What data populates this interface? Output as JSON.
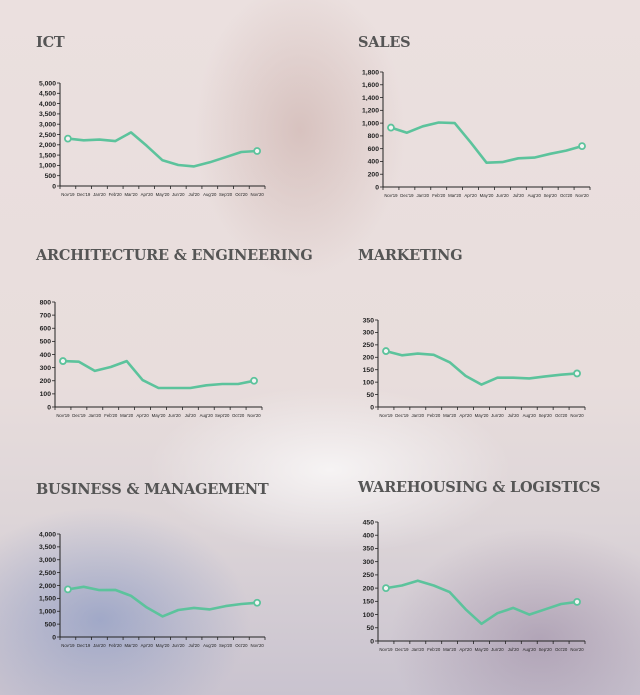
{
  "colors": {
    "line": "#5cc39c",
    "axis": "#222222",
    "title": "#555555"
  },
  "chart_data": [
    {
      "id": "ict",
      "type": "line",
      "title": "ICT",
      "ylim": [
        0,
        5000
      ],
      "ystep": 500,
      "yticks_format": "comma",
      "categories": [
        "Nov'19",
        "Dec'19",
        "Jan'20",
        "Feb'20",
        "Mar'20",
        "Apr'20",
        "May'20",
        "Jun'20",
        "Jul'20",
        "Aug'20",
        "Sep'20",
        "Oct'20",
        "Nov'20"
      ],
      "values": [
        2300,
        2220,
        2250,
        2180,
        2600,
        1950,
        1250,
        1020,
        950,
        1150,
        1400,
        1650,
        1700
      ]
    },
    {
      "id": "sales",
      "type": "line",
      "title": "SALES",
      "ylim": [
        0,
        1800
      ],
      "ystep": 200,
      "categories": [
        "Nov'19",
        "Dec'19",
        "Jan'20",
        "Feb'20",
        "Mar'20",
        "Apr'20",
        "May'20",
        "Jun'20",
        "Jul'20",
        "Aug'20",
        "Sep'20",
        "Oct'20",
        "Nov'20"
      ],
      "values": [
        930,
        850,
        950,
        1010,
        1000,
        700,
        380,
        390,
        450,
        460,
        520,
        570,
        640
      ]
    },
    {
      "id": "arch",
      "type": "line",
      "title": "ARCHITECTURE & ENGINEERING",
      "ylim": [
        0,
        800
      ],
      "ystep": 100,
      "categories": [
        "Nov'19",
        "Dec'19",
        "Jan'20",
        "Feb'20",
        "Mar'20",
        "Apr'20",
        "May'20",
        "Jun'20",
        "Jul'20",
        "Aug'20",
        "Sept'20",
        "Oct'20",
        "Nov'20"
      ],
      "values": [
        350,
        345,
        275,
        305,
        350,
        205,
        145,
        145,
        145,
        165,
        175,
        175,
        200
      ]
    },
    {
      "id": "marketing",
      "type": "line",
      "title": "MARKETING",
      "ylim": [
        0,
        350
      ],
      "ystep": 50,
      "categories": [
        "Nov'19",
        "Dec'19",
        "Jan'20",
        "Feb'20",
        "Mar'20",
        "Apr'20",
        "May'20",
        "Jun'20",
        "Jul'20",
        "Aug'20",
        "Sep'20",
        "Oct'20",
        "Nov'20"
      ],
      "values": [
        225,
        208,
        215,
        210,
        180,
        125,
        90,
        118,
        118,
        115,
        123,
        130,
        135
      ]
    },
    {
      "id": "business",
      "type": "line",
      "title": "BUSINESS & MANAGEMENT",
      "ylim": [
        0,
        4000
      ],
      "ystep": 500,
      "categories": [
        "Nov'19",
        "Dec'19",
        "Jan'20",
        "Feb'20",
        "Mar'20",
        "Apr'20",
        "May'20",
        "Jun'20",
        "Jul'20",
        "Aug'20",
        "Sep'20",
        "Oct'20",
        "Nov'20"
      ],
      "values": [
        1850,
        1950,
        1820,
        1830,
        1600,
        1150,
        800,
        1050,
        1130,
        1070,
        1200,
        1280,
        1330
      ]
    },
    {
      "id": "warehousing",
      "type": "line",
      "title": "WAREHOUSING & LOGISTICS",
      "ylim": [
        0,
        450
      ],
      "ystep": 50,
      "categories": [
        "Nov'19",
        "Dec'19",
        "Jan'20",
        "Feb'20",
        "Mar'20",
        "Apr'20",
        "May'20",
        "Jun'20",
        "Jul'20",
        "Aug'20",
        "Sep'20",
        "Oct'20",
        "Nov'20"
      ],
      "values": [
        200,
        210,
        228,
        210,
        185,
        120,
        65,
        105,
        125,
        100,
        120,
        140,
        148
      ]
    }
  ]
}
